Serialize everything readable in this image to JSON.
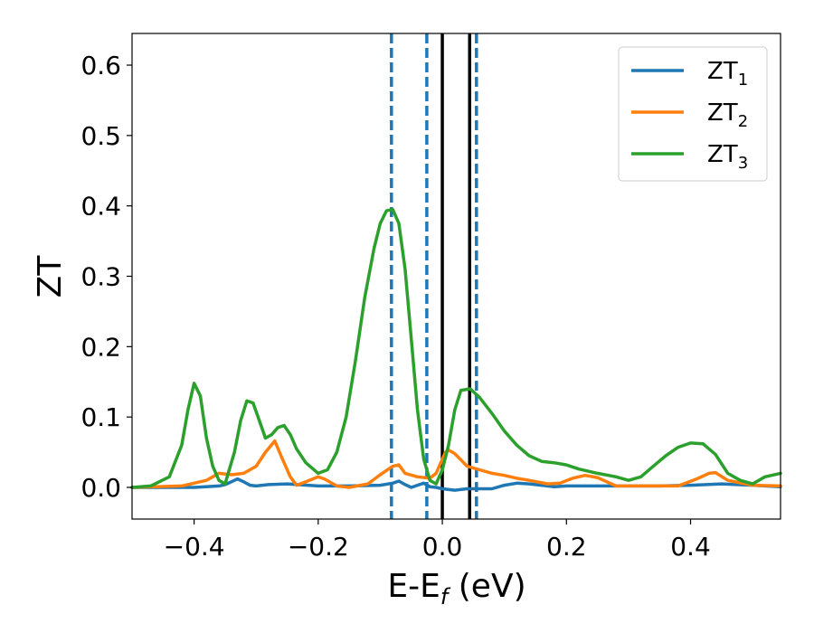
{
  "chart_data": {
    "type": "line",
    "xlabel": "E-E",
    "xlabel_sub": "f",
    "xlabel_unit": " (eV)",
    "ylabel": "ZT",
    "xlim": [
      -0.5,
      0.545
    ],
    "ylim": [
      -0.045,
      0.645
    ],
    "xticks": [
      -0.4,
      -0.2,
      0.0,
      0.2,
      0.4
    ],
    "xtick_labels": [
      "−0.4",
      "−0.2",
      "0.0",
      "0.2",
      "0.4"
    ],
    "yticks": [
      0.0,
      0.1,
      0.2,
      0.3,
      0.4,
      0.5,
      0.6
    ],
    "ytick_labels": [
      "0.0",
      "0.1",
      "0.2",
      "0.3",
      "0.4",
      "0.5",
      "0.6"
    ],
    "legend_position": "top-right",
    "grid": false,
    "series": [
      {
        "name": "ZT",
        "name_sub": "1",
        "color": "#1f77b4",
        "x": [
          -0.5,
          -0.4,
          -0.36,
          -0.35,
          -0.34,
          -0.33,
          -0.32,
          -0.31,
          -0.3,
          -0.28,
          -0.25,
          -0.2,
          -0.15,
          -0.1,
          -0.08,
          -0.07,
          -0.06,
          -0.05,
          -0.04,
          -0.03,
          -0.02,
          -0.01,
          0.0,
          0.02,
          0.04,
          0.06,
          0.08,
          0.1,
          0.12,
          0.14,
          0.16,
          0.18,
          0.2,
          0.25,
          0.3,
          0.35,
          0.4,
          0.45,
          0.5,
          0.545
        ],
        "y": [
          0.0,
          0.0,
          0.002,
          0.004,
          0.008,
          0.012,
          0.008,
          0.003,
          0.002,
          0.004,
          0.005,
          0.002,
          0.002,
          0.003,
          0.006,
          0.009,
          0.004,
          0.0,
          0.003,
          0.006,
          0.001,
          0.0,
          -0.002,
          -0.004,
          -0.002,
          -0.002,
          -0.002,
          0.003,
          0.006,
          0.005,
          0.003,
          0.001,
          0.002,
          0.002,
          0.002,
          0.002,
          0.003,
          0.005,
          0.003,
          0.001
        ]
      },
      {
        "name": "ZT",
        "name_sub": "2",
        "color": "#ff7f0e",
        "x": [
          -0.5,
          -0.42,
          -0.38,
          -0.36,
          -0.34,
          -0.32,
          -0.3,
          -0.285,
          -0.27,
          -0.26,
          -0.245,
          -0.235,
          -0.22,
          -0.2,
          -0.19,
          -0.17,
          -0.15,
          -0.12,
          -0.1,
          -0.08,
          -0.07,
          -0.06,
          -0.04,
          -0.02,
          -0.01,
          0.0,
          0.005,
          0.01,
          0.02,
          0.04,
          0.06,
          0.08,
          0.1,
          0.12,
          0.14,
          0.17,
          0.19,
          0.21,
          0.23,
          0.25,
          0.27,
          0.28,
          0.3,
          0.34,
          0.38,
          0.41,
          0.43,
          0.44,
          0.46,
          0.5,
          0.545
        ],
        "y": [
          0.0,
          0.002,
          0.01,
          0.02,
          0.018,
          0.02,
          0.03,
          0.05,
          0.066,
          0.045,
          0.015,
          0.003,
          0.008,
          0.015,
          0.012,
          0.002,
          0.0,
          0.005,
          0.018,
          0.03,
          0.032,
          0.02,
          0.015,
          0.013,
          0.02,
          0.04,
          0.05,
          0.053,
          0.048,
          0.03,
          0.025,
          0.02,
          0.017,
          0.013,
          0.01,
          0.005,
          0.006,
          0.013,
          0.017,
          0.014,
          0.006,
          0.002,
          0.002,
          0.002,
          0.002,
          0.012,
          0.02,
          0.021,
          0.01,
          0.003,
          0.002
        ]
      },
      {
        "name": "ZT",
        "name_sub": "3",
        "color": "#2ca02c",
        "x": [
          -0.5,
          -0.47,
          -0.44,
          -0.42,
          -0.41,
          -0.4,
          -0.39,
          -0.38,
          -0.37,
          -0.36,
          -0.35,
          -0.345,
          -0.335,
          -0.325,
          -0.315,
          -0.305,
          -0.295,
          -0.285,
          -0.275,
          -0.265,
          -0.255,
          -0.245,
          -0.235,
          -0.22,
          -0.2,
          -0.185,
          -0.17,
          -0.155,
          -0.14,
          -0.125,
          -0.11,
          -0.1,
          -0.09,
          -0.08,
          -0.07,
          -0.06,
          -0.05,
          -0.04,
          -0.03,
          -0.02,
          -0.01,
          0.0,
          0.01,
          0.02,
          0.03,
          0.045,
          0.06,
          0.08,
          0.1,
          0.12,
          0.14,
          0.16,
          0.18,
          0.2,
          0.22,
          0.25,
          0.28,
          0.3,
          0.32,
          0.34,
          0.36,
          0.38,
          0.4,
          0.42,
          0.44,
          0.46,
          0.48,
          0.5,
          0.52,
          0.545
        ],
        "y": [
          0.0,
          0.002,
          0.015,
          0.06,
          0.11,
          0.148,
          0.13,
          0.07,
          0.03,
          0.01,
          0.005,
          0.02,
          0.05,
          0.095,
          0.123,
          0.12,
          0.095,
          0.07,
          0.075,
          0.085,
          0.088,
          0.075,
          0.055,
          0.035,
          0.02,
          0.025,
          0.05,
          0.1,
          0.18,
          0.27,
          0.34,
          0.375,
          0.393,
          0.395,
          0.375,
          0.31,
          0.21,
          0.11,
          0.04,
          0.01,
          0.005,
          0.025,
          0.06,
          0.11,
          0.138,
          0.14,
          0.128,
          0.105,
          0.08,
          0.06,
          0.045,
          0.037,
          0.035,
          0.032,
          0.026,
          0.02,
          0.015,
          0.01,
          0.015,
          0.03,
          0.045,
          0.057,
          0.063,
          0.062,
          0.047,
          0.02,
          0.01,
          0.005,
          0.015,
          0.02
        ]
      }
    ],
    "vertical_lines": [
      {
        "x": -0.082,
        "style": "dashed",
        "color": "#1f77b4"
      },
      {
        "x": -0.025,
        "style": "dashed",
        "color": "#1f77b4"
      },
      {
        "x": 0.0,
        "style": "solid",
        "color": "#000000"
      },
      {
        "x": 0.044,
        "style": "solid",
        "color": "#000000"
      },
      {
        "x": 0.055,
        "style": "dashed",
        "color": "#1f77b4"
      }
    ]
  }
}
